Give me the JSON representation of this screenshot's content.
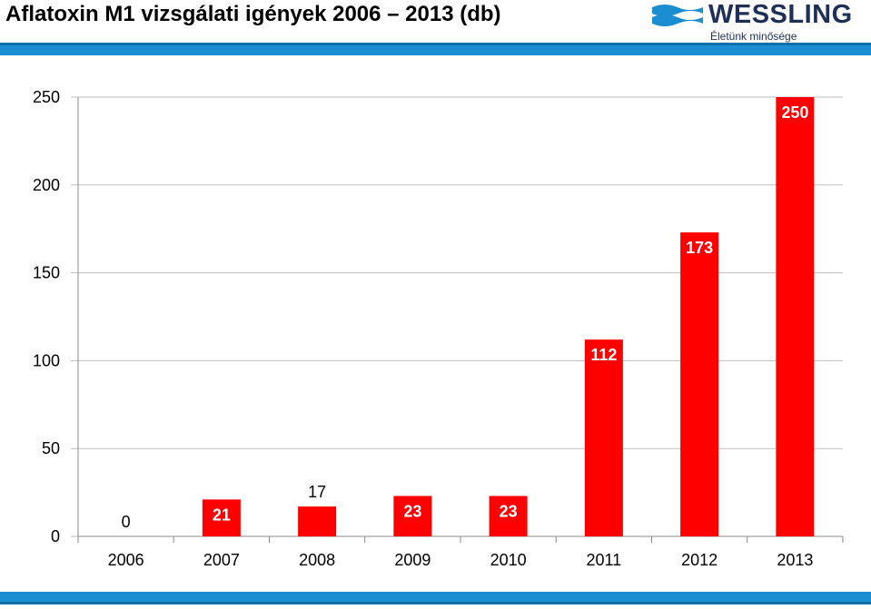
{
  "header": {
    "title": "Aflatoxin M1 vizsgálati igények 2006 – 2013 (db)",
    "logo": {
      "brand": "WESSLING",
      "tagline": "Életünk minősége",
      "colors": {
        "wave": "#1a8ed1",
        "text": "#1f2f56"
      }
    }
  },
  "chart_data": {
    "type": "bar",
    "title": "Aflatoxin M1 vizsgálati igények 2006 – 2013 (db)",
    "xlabel": "",
    "ylabel": "",
    "categories": [
      "2006",
      "2007",
      "2008",
      "2009",
      "2010",
      "2011",
      "2012",
      "2013"
    ],
    "series": [
      {
        "values": [
          0,
          21,
          17,
          23,
          23,
          112,
          173,
          250
        ],
        "color": "#ff0000"
      }
    ],
    "ylim": [
      0,
      250
    ],
    "yticks": [
      0,
      50,
      100,
      150,
      200,
      250
    ],
    "grid": true,
    "legend": "none",
    "data_labels": true
  },
  "colors": {
    "accent_band": "#1a8ed1",
    "bar": "#ff0000",
    "grid": "#bfbfbf"
  }
}
